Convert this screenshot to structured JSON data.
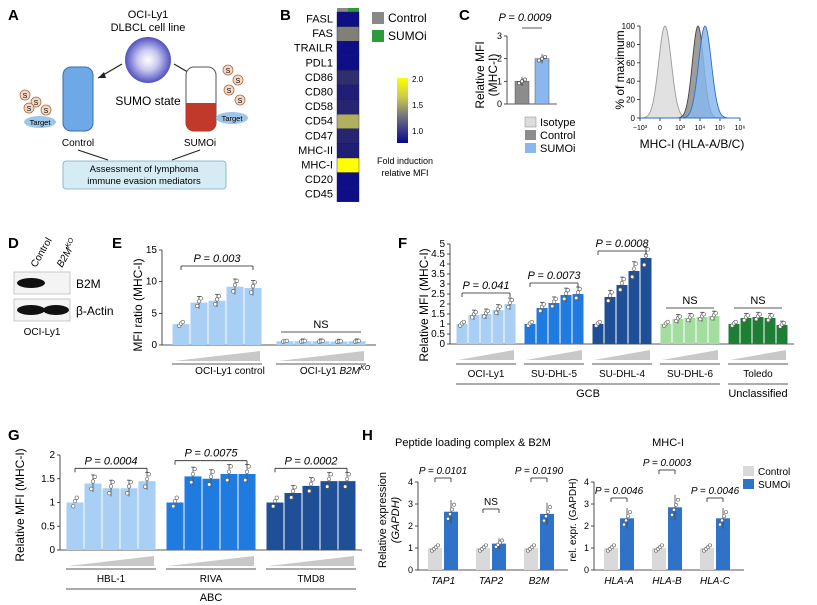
{
  "panels": {
    "A": {
      "letter": "A",
      "cell_line": "OCI-Ly1",
      "cell_desc": "DLBCL cell line",
      "sumo_state": "SUMO state",
      "sumo_glyph": "S",
      "target": "Target",
      "control": "Control",
      "sumoi": "SUMOi",
      "assessment_line1": "Assessment of lymphoma",
      "assessment_line2": "immune evasion mediators",
      "colors": {
        "control": "#6fa8e6",
        "sumoi": "#c0392b",
        "box": "#d6ecf5"
      }
    },
    "B": {
      "letter": "B",
      "rows": [
        "FASL",
        "FAS",
        "TRAILR",
        "PDL1",
        "CD86",
        "CD80",
        "CD58",
        "CD54",
        "CD47",
        "MHC-II",
        "MHC-I",
        "CD20",
        "CD45"
      ],
      "values": [
        1.0,
        1.55,
        1.0,
        1.0,
        1.25,
        1.15,
        1.2,
        1.7,
        1.2,
        1.15,
        2.05,
        1.0,
        1.0
      ],
      "legend_control": "Control",
      "legend_sumoi": "SUMOi",
      "colorbar_ticks": [
        "2.0",
        "1.5",
        "1.0"
      ],
      "colorbar_label1": "Fold induction",
      "colorbar_label2": "relative MFI",
      "colors": {
        "control": "#888888",
        "sumoi": "#2e9b3a"
      }
    },
    "C": {
      "letter": "C",
      "pval": "P = 0.0009",
      "ylabel1": "Relative MFI",
      "ylabel2": "(MHC-I)",
      "yticks": [
        "0",
        "1",
        "2",
        "3"
      ],
      "hist_ylabel": "% of maximum",
      "hist_yticks": [
        "0",
        "20",
        "40",
        "60",
        "80",
        "100"
      ],
      "hist_xticks": [
        "−10³",
        "0",
        "10³",
        "10⁴",
        "10⁵",
        "10⁶"
      ],
      "hist_xlabel": "MHC-I (HLA-A/B/C)",
      "legend": [
        "Isotype",
        "Control",
        "SUMOi"
      ],
      "colors": {
        "isotype": "#dcdcdc",
        "control": "#8c8c8c",
        "sumoi": "#8ab8ee"
      }
    },
    "D": {
      "letter": "D",
      "lane1": "Control",
      "lane2": "B2M",
      "lane2_sup": "KO",
      "band1": "B2M",
      "band2": "β-Actin",
      "cell": "OCI-Ly1"
    },
    "E": {
      "letter": "E",
      "ylabel": "MFI ratio (MHC-I)",
      "yticks": [
        "0",
        "5",
        "10",
        "15"
      ],
      "pval": "P = 0.003",
      "ns": "NS",
      "group1": "OCI-Ly1 control",
      "group2_a": "OCI-Ly1 ",
      "group2_b": "B2M",
      "group2_sup": "KO"
    },
    "F": {
      "letter": "F",
      "ylabel": "Relative MFI (MHC-I)",
      "yticks": [
        "0",
        "0.5",
        "1",
        "1.5",
        "2",
        "2.5",
        "3",
        "3.5",
        "4",
        "4.5",
        "5"
      ],
      "pvals": [
        "P = 0.041",
        "P = 0.0073",
        "P = 0.0008"
      ],
      "ns": "NS",
      "groups": [
        "OCI-Ly1",
        "SU-DHL-5",
        "SU-DHL-4",
        "SU-DHL-6",
        "Toledo"
      ],
      "bracket1": "GCB",
      "bracket2": "Unclassified"
    },
    "G": {
      "letter": "G",
      "ylabel": "Relative MFI (MHC-I)",
      "yticks": [
        "0",
        "0.5",
        "1",
        "1.5",
        "2"
      ],
      "pvals": [
        "P = 0.0004",
        "P = 0.0075",
        "P = 0.0002"
      ],
      "groups": [
        "HBL-1",
        "RIVA",
        "TMD8"
      ],
      "bracket": "ABC"
    },
    "H": {
      "letter": "H",
      "title1": "Peptide loading complex & B2M",
      "title2": "MHC-I",
      "ylabel1_a": "Relative expression",
      "ylabel1_b": "(GAPDH)",
      "ylabel2": "rel. expr. (GAPDH)",
      "yticks1": [
        "0",
        "1",
        "2",
        "3",
        "4"
      ],
      "yticks2": [
        "0",
        "1",
        "2",
        "3",
        "4"
      ],
      "pvals1": [
        "P = 0.0101",
        "NS",
        "P = 0.0190"
      ],
      "pvals2": [
        "P = 0.0046",
        "P = 0.0003",
        "P = 0.0046"
      ],
      "legend": [
        "Control",
        "SUMOi"
      ],
      "colors": {
        "control": "#d9d9d9",
        "sumoi": "#2f73c9"
      }
    }
  },
  "chart_data": [
    {
      "panel": "B",
      "type": "heatmap",
      "rows": [
        "FASL",
        "FAS",
        "TRAILR",
        "PDL1",
        "CD86",
        "CD80",
        "CD58",
        "CD54",
        "CD47",
        "MHC-II",
        "MHC-I",
        "CD20",
        "CD45"
      ],
      "columns": [
        "Control",
        "SUMOi"
      ],
      "values": [
        1.0,
        1.55,
        1.0,
        1.0,
        1.25,
        1.15,
        1.2,
        1.7,
        1.2,
        1.15,
        2.05,
        1.0,
        1.0
      ],
      "zlim": [
        0.8,
        2.1
      ]
    },
    {
      "panel": "C",
      "type": "bar",
      "categories": [
        "Control",
        "SUMOi"
      ],
      "values": [
        1.0,
        2.0
      ],
      "ylim": [
        0,
        3
      ]
    },
    {
      "panel": "E",
      "type": "bar",
      "ylim": [
        0,
        15
      ],
      "groups": [
        {
          "name": "OCI-Ly1 control",
          "values": [
            3.3,
            6.7,
            7.0,
            9.2,
            9.0
          ],
          "color": "#a9cff5"
        },
        {
          "name": "OCI-Ly1 B2M KO",
          "values": [
            0.6,
            0.6,
            0.6,
            0.55,
            0.6
          ],
          "color": "#a9cff5"
        }
      ]
    },
    {
      "panel": "F",
      "type": "bar",
      "ylim": [
        0,
        5
      ],
      "groups": [
        {
          "name": "OCI-Ly1",
          "values": [
            1.0,
            1.45,
            1.5,
            1.7,
            2.0
          ],
          "color": "#a9cff5"
        },
        {
          "name": "SU-DHL-5",
          "values": [
            1.0,
            1.8,
            2.05,
            2.45,
            2.5
          ],
          "color": "#1f7be0"
        },
        {
          "name": "SU-DHL-4",
          "values": [
            1.0,
            2.35,
            2.95,
            3.65,
            4.3
          ],
          "color": "#1f4f96"
        },
        {
          "name": "SU-DHL-6",
          "values": [
            1.0,
            1.25,
            1.3,
            1.35,
            1.4
          ],
          "color": "#a4dda0"
        },
        {
          "name": "Toledo",
          "values": [
            1.0,
            1.3,
            1.35,
            1.3,
            0.95
          ],
          "color": "#1e7e34"
        }
      ]
    },
    {
      "panel": "G",
      "type": "bar",
      "ylim": [
        0,
        2
      ],
      "groups": [
        {
          "name": "HBL-1",
          "values": [
            1.0,
            1.4,
            1.3,
            1.3,
            1.45
          ],
          "color": "#a9cff5"
        },
        {
          "name": "RIVA",
          "values": [
            1.0,
            1.55,
            1.5,
            1.6,
            1.6
          ],
          "color": "#1f7be0"
        },
        {
          "name": "TMD8",
          "values": [
            1.0,
            1.2,
            1.35,
            1.45,
            1.45
          ],
          "color": "#1f4f96"
        }
      ]
    },
    {
      "panel": "H1",
      "type": "bar",
      "ylim": [
        0,
        4
      ],
      "categories": [
        "TAP1",
        "TAP2",
        "B2M"
      ],
      "series": [
        {
          "name": "Control",
          "values": [
            1.0,
            1.0,
            1.0
          ]
        },
        {
          "name": "SUMOi",
          "values": [
            2.65,
            1.2,
            2.55
          ]
        }
      ]
    },
    {
      "panel": "H2",
      "type": "bar",
      "ylim": [
        0,
        4
      ],
      "categories": [
        "HLA-A",
        "HLA-B",
        "HLA-C"
      ],
      "series": [
        {
          "name": "Control",
          "values": [
            1.0,
            1.0,
            1.0
          ]
        },
        {
          "name": "SUMOi",
          "values": [
            2.35,
            2.85,
            2.35
          ]
        }
      ]
    }
  ]
}
